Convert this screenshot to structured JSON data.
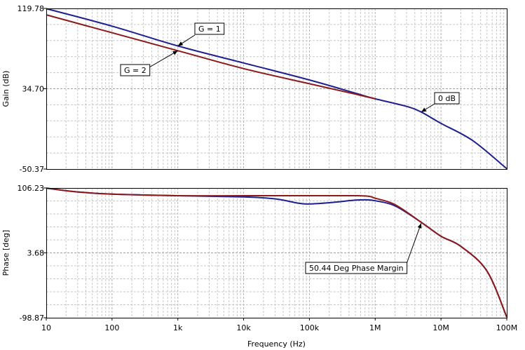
{
  "chart_data": [
    {
      "type": "line",
      "name": "gain-plot",
      "ylabel": "Gain (dB)",
      "xlabel": "",
      "x_scale": "log",
      "xlim": [
        10,
        100000000
      ],
      "ylim": [
        -50.37,
        119.78
      ],
      "y_ticks": [
        "119.78",
        "34.70",
        "-50.37"
      ],
      "grid": true,
      "series": [
        {
          "name": "G = 1",
          "color": "#1f1f8f",
          "x": [
            10,
            100,
            1000,
            10000,
            100000,
            500000,
            1000000,
            3000000,
            5000000,
            10000000,
            30000000,
            100000000
          ],
          "y": [
            119.5,
            101,
            80,
            62,
            44,
            30,
            24,
            16,
            10,
            -2,
            -20,
            -50
          ]
        },
        {
          "name": "G = 2",
          "color": "#8b1a1a",
          "x": [
            10,
            100,
            1000,
            10000,
            100000,
            500000,
            1000000
          ],
          "y": [
            113,
            94,
            75,
            56,
            40,
            29,
            24
          ]
        }
      ],
      "annotations": [
        {
          "text": "G = 1",
          "target": [
            1000,
            80
          ]
        },
        {
          "text": "G = 2",
          "target": [
            1000,
            75
          ]
        },
        {
          "text": "0 dB",
          "target": [
            5000000,
            10
          ]
        }
      ]
    },
    {
      "type": "line",
      "name": "phase-plot",
      "ylabel": "Phase [deg]",
      "xlabel": "Frequency (Hz)",
      "x_scale": "log",
      "xlim": [
        10,
        100000000
      ],
      "ylim": [
        -98.87,
        106.23
      ],
      "y_ticks": [
        "106.23",
        "3.68",
        "-98.87"
      ],
      "x_ticks": [
        "10",
        "100",
        "1k",
        "10k",
        "100k",
        "1M",
        "10M",
        "100M"
      ],
      "grid": true,
      "series": [
        {
          "name": "G = 1",
          "color": "#1f1f8f",
          "x": [
            10,
            30,
            100,
            1000,
            10000,
            30000,
            70000,
            100000,
            200000,
            500000,
            700000,
            1000000,
            2000000,
            5000000,
            10000000,
            20000000,
            50000000,
            100000000
          ],
          "y": [
            106,
            100,
            96.5,
            94,
            92,
            89,
            82,
            81,
            83,
            87,
            87.5,
            86,
            78,
            52,
            30,
            14,
            -25,
            -98
          ]
        },
        {
          "name": "G = 2",
          "color": "#8b1a1a",
          "x": [
            10,
            30,
            100,
            1000,
            10000,
            100000,
            500000,
            800000,
            1000000,
            2000000,
            5000000,
            10000000,
            20000000,
            50000000,
            100000000
          ],
          "y": [
            106,
            100,
            96.5,
            94,
            94,
            94,
            94,
            93,
            90,
            80,
            52,
            30,
            14,
            -25,
            -98
          ]
        }
      ],
      "annotations": [
        {
          "text": "50.44 Deg Phase Margin",
          "target": [
            5000000,
            50.44
          ]
        }
      ]
    }
  ]
}
